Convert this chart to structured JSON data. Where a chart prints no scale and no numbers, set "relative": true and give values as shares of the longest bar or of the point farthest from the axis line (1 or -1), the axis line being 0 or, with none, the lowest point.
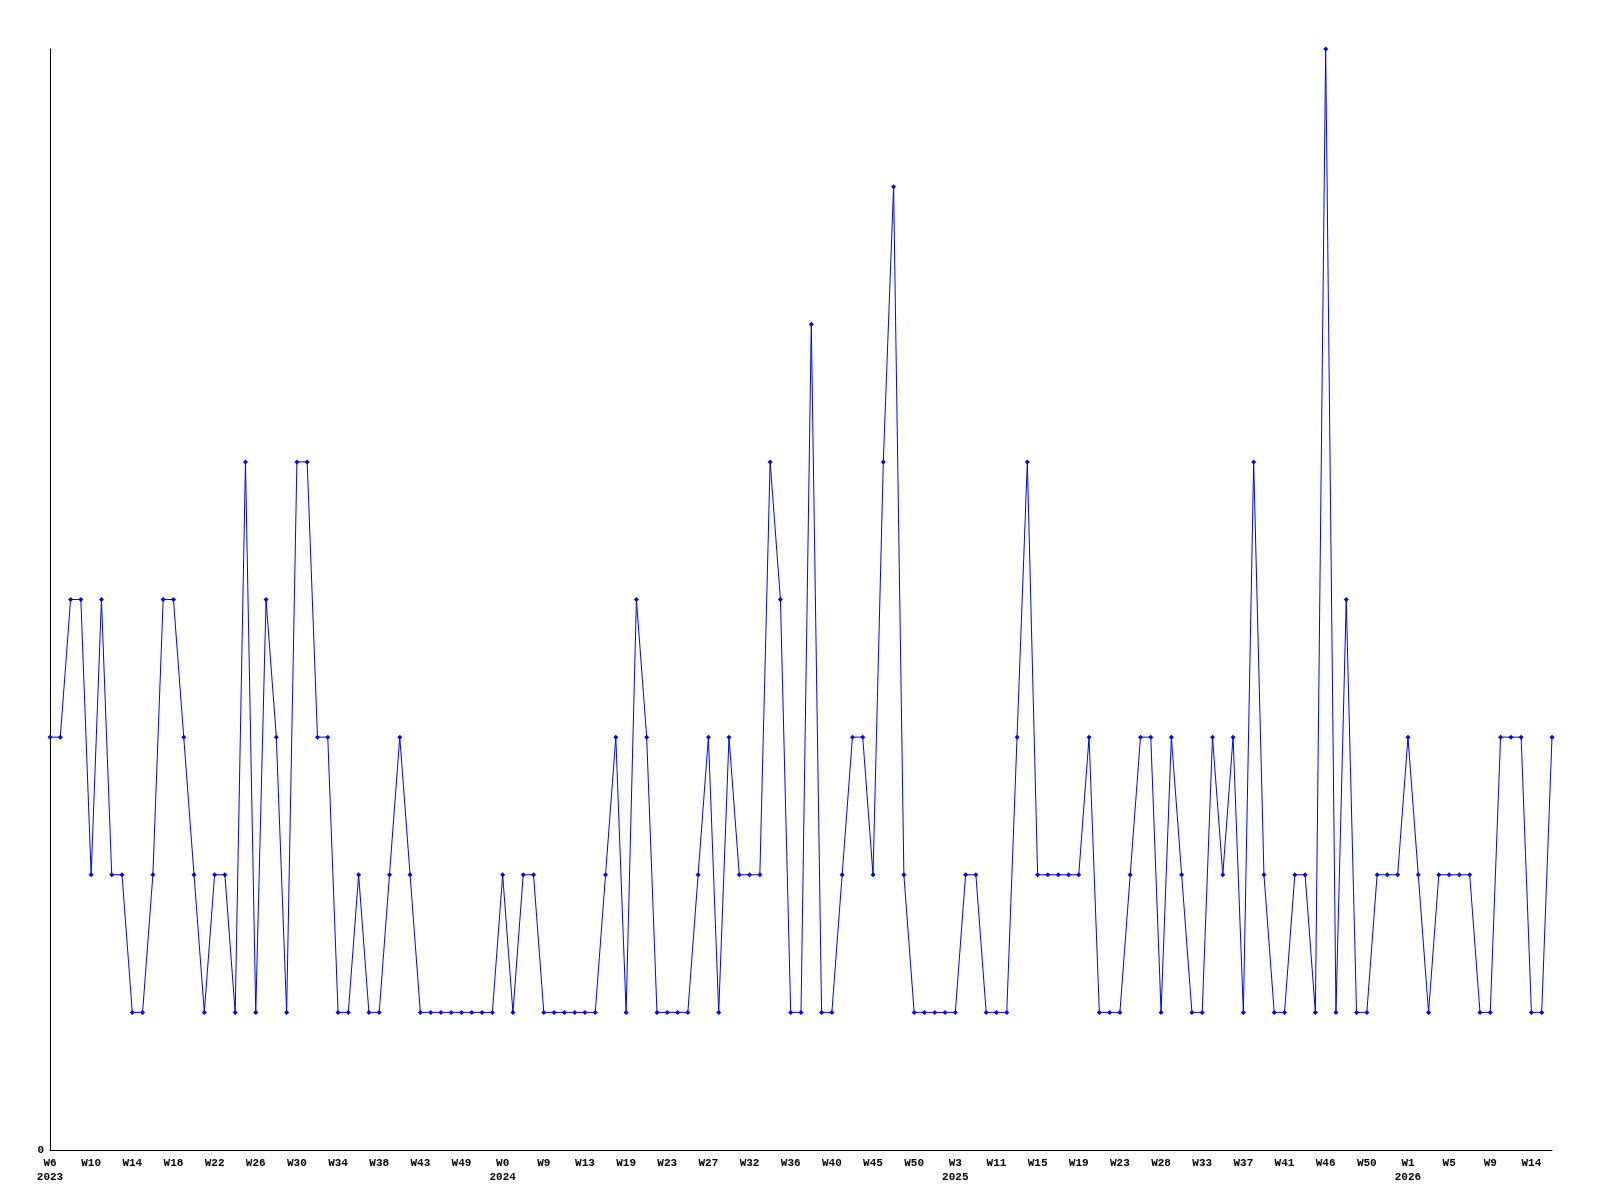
{
  "chart_data": {
    "type": "line",
    "relative": true,
    "color": "#0000ff",
    "marker": "diamond",
    "line_style": "solid",
    "grid": false,
    "annotations": [
      "0"
    ],
    "categories": [
      "W6\n2023",
      null,
      null,
      null,
      "W10",
      null,
      null,
      null,
      "W14",
      null,
      null,
      null,
      "W18",
      null,
      null,
      null,
      "W22",
      null,
      null,
      null,
      "W26",
      null,
      null,
      null,
      "W30",
      null,
      null,
      null,
      "W34",
      null,
      null,
      null,
      "W38",
      null,
      null,
      null,
      "W43",
      null,
      null,
      null,
      "W49",
      null,
      null,
      null,
      "W0\n2024",
      null,
      null,
      null,
      "W9",
      null,
      null,
      null,
      "W13",
      null,
      null,
      null,
      "W19",
      null,
      null,
      null,
      "W23",
      null,
      null,
      null,
      "W27",
      null,
      null,
      null,
      "W32",
      null,
      null,
      null,
      "W36",
      null,
      null,
      null,
      "W40",
      null,
      null,
      null,
      "W45",
      null,
      null,
      null,
      "W50",
      null,
      null,
      null,
      "W3\n2025",
      null,
      null,
      null,
      "W11",
      null,
      null,
      null,
      "W15",
      null,
      null,
      null,
      "W19",
      null,
      null,
      null,
      "W23",
      null,
      null,
      null,
      "W28",
      null,
      null,
      null,
      "W33",
      null,
      null,
      null,
      "W37",
      null,
      null,
      null,
      "W41",
      null,
      null,
      null,
      "W46",
      null,
      null,
      null,
      "W50",
      null,
      null,
      null,
      "W1\n2026",
      null,
      null,
      null,
      "W5",
      null,
      null,
      null,
      "W9",
      null,
      null,
      null,
      "W14",
      null,
      null
    ],
    "values": [
      0.375,
      0.375,
      0.5,
      0.5,
      0.25,
      0.5,
      0.25,
      0.25,
      0.125,
      0.125,
      0.25,
      0.5,
      0.5,
      0.375,
      0.25,
      0.125,
      0.25,
      0.25,
      0.125,
      0.625,
      0.125,
      0.5,
      0.375,
      0.125,
      0.625,
      0.625,
      0.375,
      0.375,
      0.125,
      0.125,
      0.25,
      0.125,
      0.125,
      0.25,
      0.375,
      0.25,
      0.125,
      0.125,
      0.125,
      0.125,
      0.125,
      0.125,
      0.125,
      0.125,
      0.25,
      0.125,
      0.25,
      0.25,
      0.125,
      0.125,
      0.125,
      0.125,
      0.125,
      0.125,
      0.25,
      0.375,
      0.125,
      0.5,
      0.375,
      0.125,
      0.125,
      0.125,
      0.125,
      0.25,
      0.375,
      0.125,
      0.375,
      0.25,
      0.25,
      0.25,
      0.625,
      0.5,
      0.125,
      0.125,
      0.75,
      0.125,
      0.125,
      0.25,
      0.375,
      0.375,
      0.25,
      0.625,
      0.875,
      0.25,
      0.125,
      0.125,
      0.125,
      0.125,
      0.125,
      0.25,
      0.25,
      0.125,
      0.125,
      0.125,
      0.375,
      0.625,
      0.25,
      0.25,
      0.25,
      0.25,
      0.25,
      0.375,
      0.125,
      0.125,
      0.125,
      0.25,
      0.375,
      0.375,
      0.125,
      0.375,
      0.25,
      0.125,
      0.125,
      0.375,
      0.25,
      0.375,
      0.125,
      0.625,
      0.25,
      0.125,
      0.125,
      0.25,
      0.25,
      0.125,
      1,
      0.125,
      0.5,
      0.125,
      0.125,
      0.25,
      0.25,
      0.25,
      0.375,
      0.25,
      0.125,
      0.25,
      0.25,
      0.25,
      0.25,
      0.125,
      0.125,
      0.375,
      0.375,
      0.375,
      0.125,
      0.125,
      0.375
    ]
  }
}
